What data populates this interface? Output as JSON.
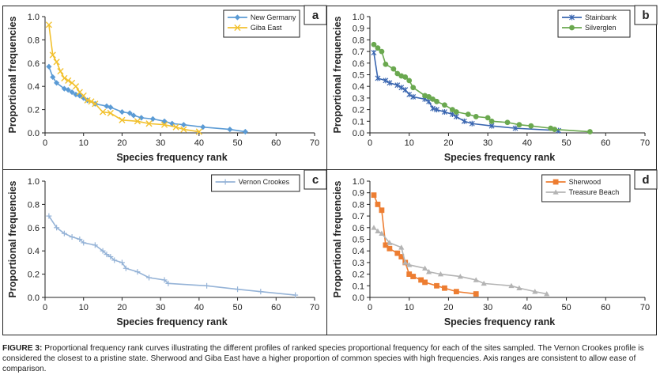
{
  "caption": {
    "label": "FIGURE 3:",
    "text": " Proportional frequency rank curves illustrating the different profiles of ranked species proportional frequency for each of the sites sampled. The Vernon Crookes profile is considered the closest to a pristine state. Sherwood and Giba East have a higher proportion of common species with high frequencies. Axis ranges are consistent to allow ease of comparison."
  },
  "chart_data": [
    {
      "panel": "a",
      "type": "line",
      "xlabel": "Species frequency rank",
      "ylabel": "Proportional frequencies",
      "xlim": [
        0,
        70
      ],
      "ylim": [
        0,
        1.0
      ],
      "xticks": [
        "0",
        "10",
        "20",
        "30",
        "40",
        "50",
        "60",
        "70"
      ],
      "yticks": [
        "0.0",
        "0.2",
        "0.4",
        "0.6",
        "0.8",
        "1.0"
      ],
      "legend_position": "top-right",
      "series": [
        {
          "name": "New Germany",
          "color": "#5b9bd5",
          "marker": "diamond",
          "x": [
            1,
            2,
            3,
            5,
            6,
            7,
            8,
            9,
            10,
            11,
            13,
            16,
            17,
            20,
            22,
            23,
            25,
            28,
            31,
            33,
            36,
            41,
            48,
            52
          ],
          "y": [
            0.57,
            0.48,
            0.43,
            0.38,
            0.37,
            0.35,
            0.33,
            0.32,
            0.3,
            0.28,
            0.25,
            0.23,
            0.22,
            0.18,
            0.17,
            0.15,
            0.13,
            0.12,
            0.1,
            0.08,
            0.07,
            0.05,
            0.03,
            0.01
          ]
        },
        {
          "name": "Giba East",
          "color": "#f2c12e",
          "marker": "x",
          "x": [
            1,
            2,
            3,
            4,
            5,
            6,
            7,
            8,
            9,
            10,
            11,
            12,
            13,
            15,
            17,
            20,
            24,
            27,
            31,
            34,
            36,
            40
          ],
          "y": [
            0.93,
            0.67,
            0.61,
            0.53,
            0.47,
            0.45,
            0.43,
            0.4,
            0.35,
            0.32,
            0.28,
            0.27,
            0.25,
            0.18,
            0.17,
            0.11,
            0.1,
            0.08,
            0.07,
            0.05,
            0.03,
            0.01
          ]
        }
      ]
    },
    {
      "panel": "b",
      "type": "line",
      "xlabel": "Species frequency rank",
      "ylabel": "Proportional frequencies",
      "xlim": [
        0,
        70
      ],
      "ylim": [
        0,
        1.0
      ],
      "xticks": [
        "0",
        "10",
        "20",
        "30",
        "40",
        "50",
        "60",
        "70"
      ],
      "yticks": [
        "0.0",
        "0.1",
        "0.2",
        "0.3",
        "0.4",
        "0.5",
        "0.6",
        "0.7",
        "0.8",
        "0.9",
        "1.0"
      ],
      "legend_position": "top-right",
      "series": [
        {
          "name": "Stainbank",
          "color": "#3a66b0",
          "marker": "asterisk",
          "x": [
            1,
            2,
            4,
            5,
            7,
            8,
            9,
            10,
            11,
            14,
            15,
            16,
            17,
            19,
            21,
            22,
            24,
            26,
            31,
            37,
            48
          ],
          "y": [
            0.69,
            0.47,
            0.45,
            0.43,
            0.41,
            0.39,
            0.37,
            0.33,
            0.31,
            0.29,
            0.27,
            0.21,
            0.2,
            0.18,
            0.16,
            0.14,
            0.1,
            0.08,
            0.06,
            0.04,
            0.02
          ]
        },
        {
          "name": "Silverglen",
          "color": "#6aa84f",
          "marker": "circle",
          "x": [
            1,
            2,
            3,
            4,
            6,
            7,
            8,
            9,
            10,
            11,
            14,
            15,
            16,
            17,
            19,
            21,
            22,
            25,
            27,
            30,
            31,
            35,
            38,
            41,
            46,
            47,
            56
          ],
          "y": [
            0.76,
            0.73,
            0.7,
            0.59,
            0.55,
            0.51,
            0.49,
            0.48,
            0.45,
            0.39,
            0.32,
            0.31,
            0.29,
            0.27,
            0.24,
            0.2,
            0.18,
            0.16,
            0.14,
            0.13,
            0.1,
            0.09,
            0.07,
            0.06,
            0.04,
            0.03,
            0.01
          ]
        }
      ]
    },
    {
      "panel": "c",
      "type": "line",
      "xlabel": "Species frequency rank",
      "ylabel": "Proportional frequencies",
      "xlim": [
        0,
        70
      ],
      "ylim": [
        0,
        1.0
      ],
      "xticks": [
        "0",
        "10",
        "20",
        "30",
        "40",
        "50",
        "60",
        "70"
      ],
      "yticks": [
        "0.0",
        "0.2",
        "0.4",
        "0.6",
        "0.8",
        "1.0"
      ],
      "legend_position": "top-right",
      "series": [
        {
          "name": "Vernon Crookes",
          "color": "#95b3d7",
          "marker": "plus",
          "x": [
            1,
            3,
            5,
            7,
            9,
            10,
            13,
            15,
            16,
            17,
            18,
            20,
            21,
            24,
            27,
            31,
            32,
            42,
            50,
            56,
            65
          ],
          "y": [
            0.7,
            0.6,
            0.55,
            0.52,
            0.5,
            0.47,
            0.45,
            0.4,
            0.37,
            0.35,
            0.32,
            0.3,
            0.25,
            0.22,
            0.17,
            0.15,
            0.12,
            0.1,
            0.07,
            0.05,
            0.02
          ]
        }
      ]
    },
    {
      "panel": "d",
      "type": "line",
      "xlabel": "Species frequency rank",
      "ylabel": "Proportional frequencies",
      "xlim": [
        0,
        70
      ],
      "ylim": [
        0,
        1.0
      ],
      "xticks": [
        "0",
        "10",
        "20",
        "30",
        "40",
        "50",
        "60",
        "70"
      ],
      "yticks": [
        "0.0",
        "0.1",
        "0.2",
        "0.3",
        "0.4",
        "0.5",
        "0.6",
        "0.7",
        "0.8",
        "0.9",
        "1.0"
      ],
      "legend_position": "top-right",
      "series": [
        {
          "name": "Sherwood",
          "color": "#ed7d31",
          "marker": "square",
          "x": [
            1,
            2,
            3,
            4,
            5,
            7,
            8,
            9,
            10,
            11,
            13,
            14,
            17,
            19,
            22,
            27
          ],
          "y": [
            0.88,
            0.8,
            0.75,
            0.45,
            0.42,
            0.38,
            0.35,
            0.3,
            0.2,
            0.18,
            0.15,
            0.13,
            0.1,
            0.08,
            0.05,
            0.03
          ]
        },
        {
          "name": "Treasure Beach",
          "color": "#b4b4b4",
          "marker": "triangle",
          "x": [
            1,
            2,
            3,
            5,
            8,
            9,
            10,
            14,
            15,
            18,
            23,
            27,
            29,
            36,
            38,
            42,
            45
          ],
          "y": [
            0.6,
            0.57,
            0.55,
            0.47,
            0.43,
            0.3,
            0.28,
            0.25,
            0.22,
            0.2,
            0.18,
            0.15,
            0.12,
            0.1,
            0.08,
            0.05,
            0.03
          ]
        }
      ]
    }
  ]
}
